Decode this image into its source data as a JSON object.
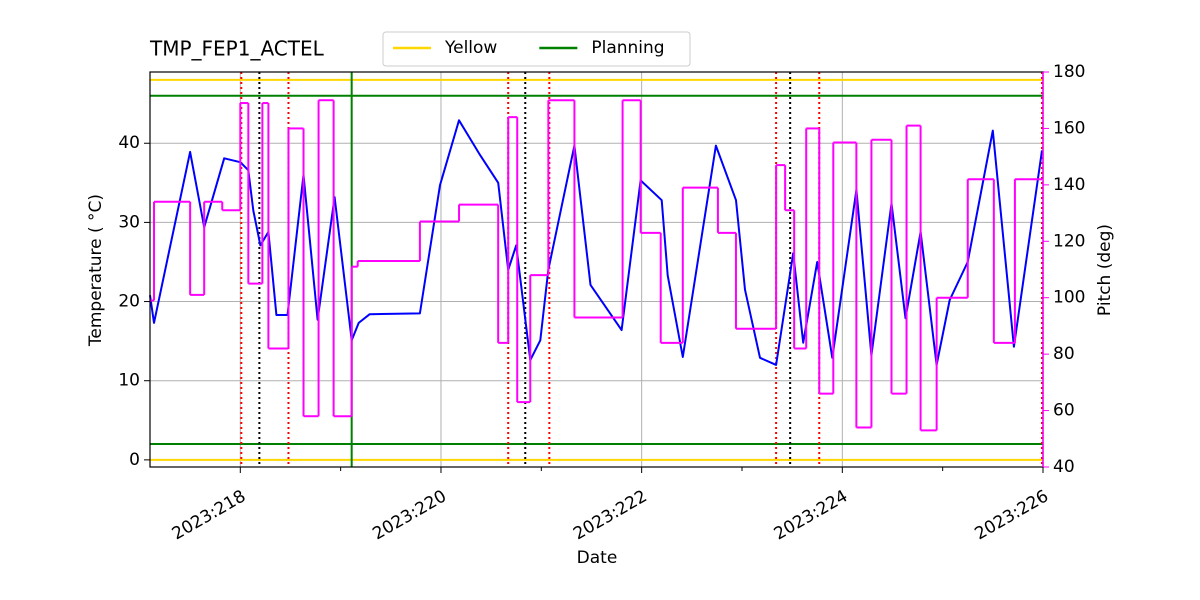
{
  "chart_data": {
    "type": "line",
    "title": "TMP_FEP1_ACTEL",
    "x_label": "Date",
    "y_label": "Temperature ( °C)",
    "y2_label": "Pitch (deg)",
    "xlim": [
      217.1,
      226.0
    ],
    "ylim": [
      -0.9,
      49
    ],
    "y2lim": [
      40,
      180
    ],
    "xticks": [
      {
        "value": 218,
        "label": "2023:218"
      },
      {
        "value": 220,
        "label": "2023:220"
      },
      {
        "value": 222,
        "label": "2023:222"
      },
      {
        "value": 224,
        "label": "2023:224"
      },
      {
        "value": 226,
        "label": "2023:226"
      }
    ],
    "xminorticks": [
      219,
      221,
      223,
      225
    ],
    "yticks": [
      0,
      10,
      20,
      30,
      40
    ],
    "y2ticks": [
      40,
      60,
      80,
      100,
      120,
      140,
      160,
      180
    ],
    "grid": true,
    "y2_color": "#ff00ff",
    "series": [
      {
        "color": "#0000ff",
        "drawstyle": "line",
        "x": [
          217.1,
          217.14,
          217.5,
          217.64,
          217.84,
          218.0,
          218.08,
          218.13,
          218.2,
          218.28,
          218.36,
          218.47,
          218.63,
          218.77,
          218.94,
          219.11,
          219.18,
          219.29,
          219.79,
          219.99,
          220.18,
          220.39,
          220.57,
          220.67,
          220.75,
          220.89,
          220.99,
          221.07,
          221.33,
          221.49,
          221.8,
          221.99,
          222.2,
          222.26,
          222.41,
          222.74,
          222.94,
          223.03,
          223.18,
          223.34,
          223.51,
          223.61,
          223.75,
          223.9,
          224.14,
          224.29,
          224.49,
          224.63,
          224.78,
          224.94,
          225.07,
          225.25,
          225.5,
          225.71,
          225.99
        ],
        "values": [
          20.8,
          17.3,
          38.9,
          29.4,
          38.1,
          37.6,
          36.6,
          31.5,
          27.1,
          28.8,
          18.3,
          18.3,
          36.0,
          17.7,
          33.2,
          15.1,
          17.3,
          18.4,
          18.5,
          34.7,
          42.9,
          38.5,
          35.0,
          24.0,
          27.1,
          12.6,
          15.1,
          24.0,
          39.7,
          22.1,
          16.4,
          35.3,
          32.8,
          23.3,
          13.0,
          39.7,
          32.8,
          21.5,
          12.9,
          12.0,
          26.1,
          14.8,
          25.0,
          12.9,
          34.1,
          13.2,
          32.4,
          17.9,
          28.8,
          12.0,
          20.2,
          25.0,
          41.6,
          14.3,
          39.1
        ]
      },
      {
        "color": "#ff00ff",
        "axis": "y2",
        "drawstyle": "steps-post",
        "x": [
          217.1,
          217.14,
          217.5,
          217.64,
          217.82,
          218.0,
          218.08,
          218.22,
          218.28,
          218.48,
          218.63,
          218.78,
          218.93,
          219.11,
          219.17,
          219.79,
          220.18,
          220.57,
          220.67,
          220.76,
          220.89,
          221.07,
          221.33,
          221.81,
          221.99,
          222.19,
          222.41,
          222.76,
          222.94,
          223.34,
          223.43,
          223.52,
          223.64,
          223.77,
          223.91,
          224.14,
          224.29,
          224.49,
          224.64,
          224.78,
          224.94,
          225.25,
          225.51,
          225.72,
          225.99
        ],
        "values": [
          99,
          134,
          101,
          134,
          131,
          169,
          105,
          169,
          82,
          160,
          58,
          170,
          58,
          111,
          113,
          127,
          133,
          84,
          164,
          63,
          108,
          170,
          93,
          170,
          123,
          84,
          139,
          123,
          89,
          147,
          131,
          82,
          160,
          66,
          155,
          54,
          156,
          66,
          161,
          53,
          100,
          142,
          84,
          142,
          142
        ]
      }
    ],
    "hlines": [
      {
        "name": "Yellow",
        "color": "#ffd700",
        "values": [
          48,
          0
        ]
      },
      {
        "name": "Planning",
        "color": "#008000",
        "values": [
          46,
          2
        ]
      }
    ],
    "vlines": [
      {
        "color": "#008000",
        "style": "solid",
        "x": [
          219.11
        ]
      },
      {
        "color": "#ff0000",
        "style": "dotted",
        "x": [
          218.01,
          218.48,
          220.67,
          221.08,
          223.34,
          223.77,
          225.99
        ]
      },
      {
        "color": "#000000",
        "style": "dotted",
        "x": [
          218.19,
          220.84,
          223.48
        ]
      }
    ]
  }
}
